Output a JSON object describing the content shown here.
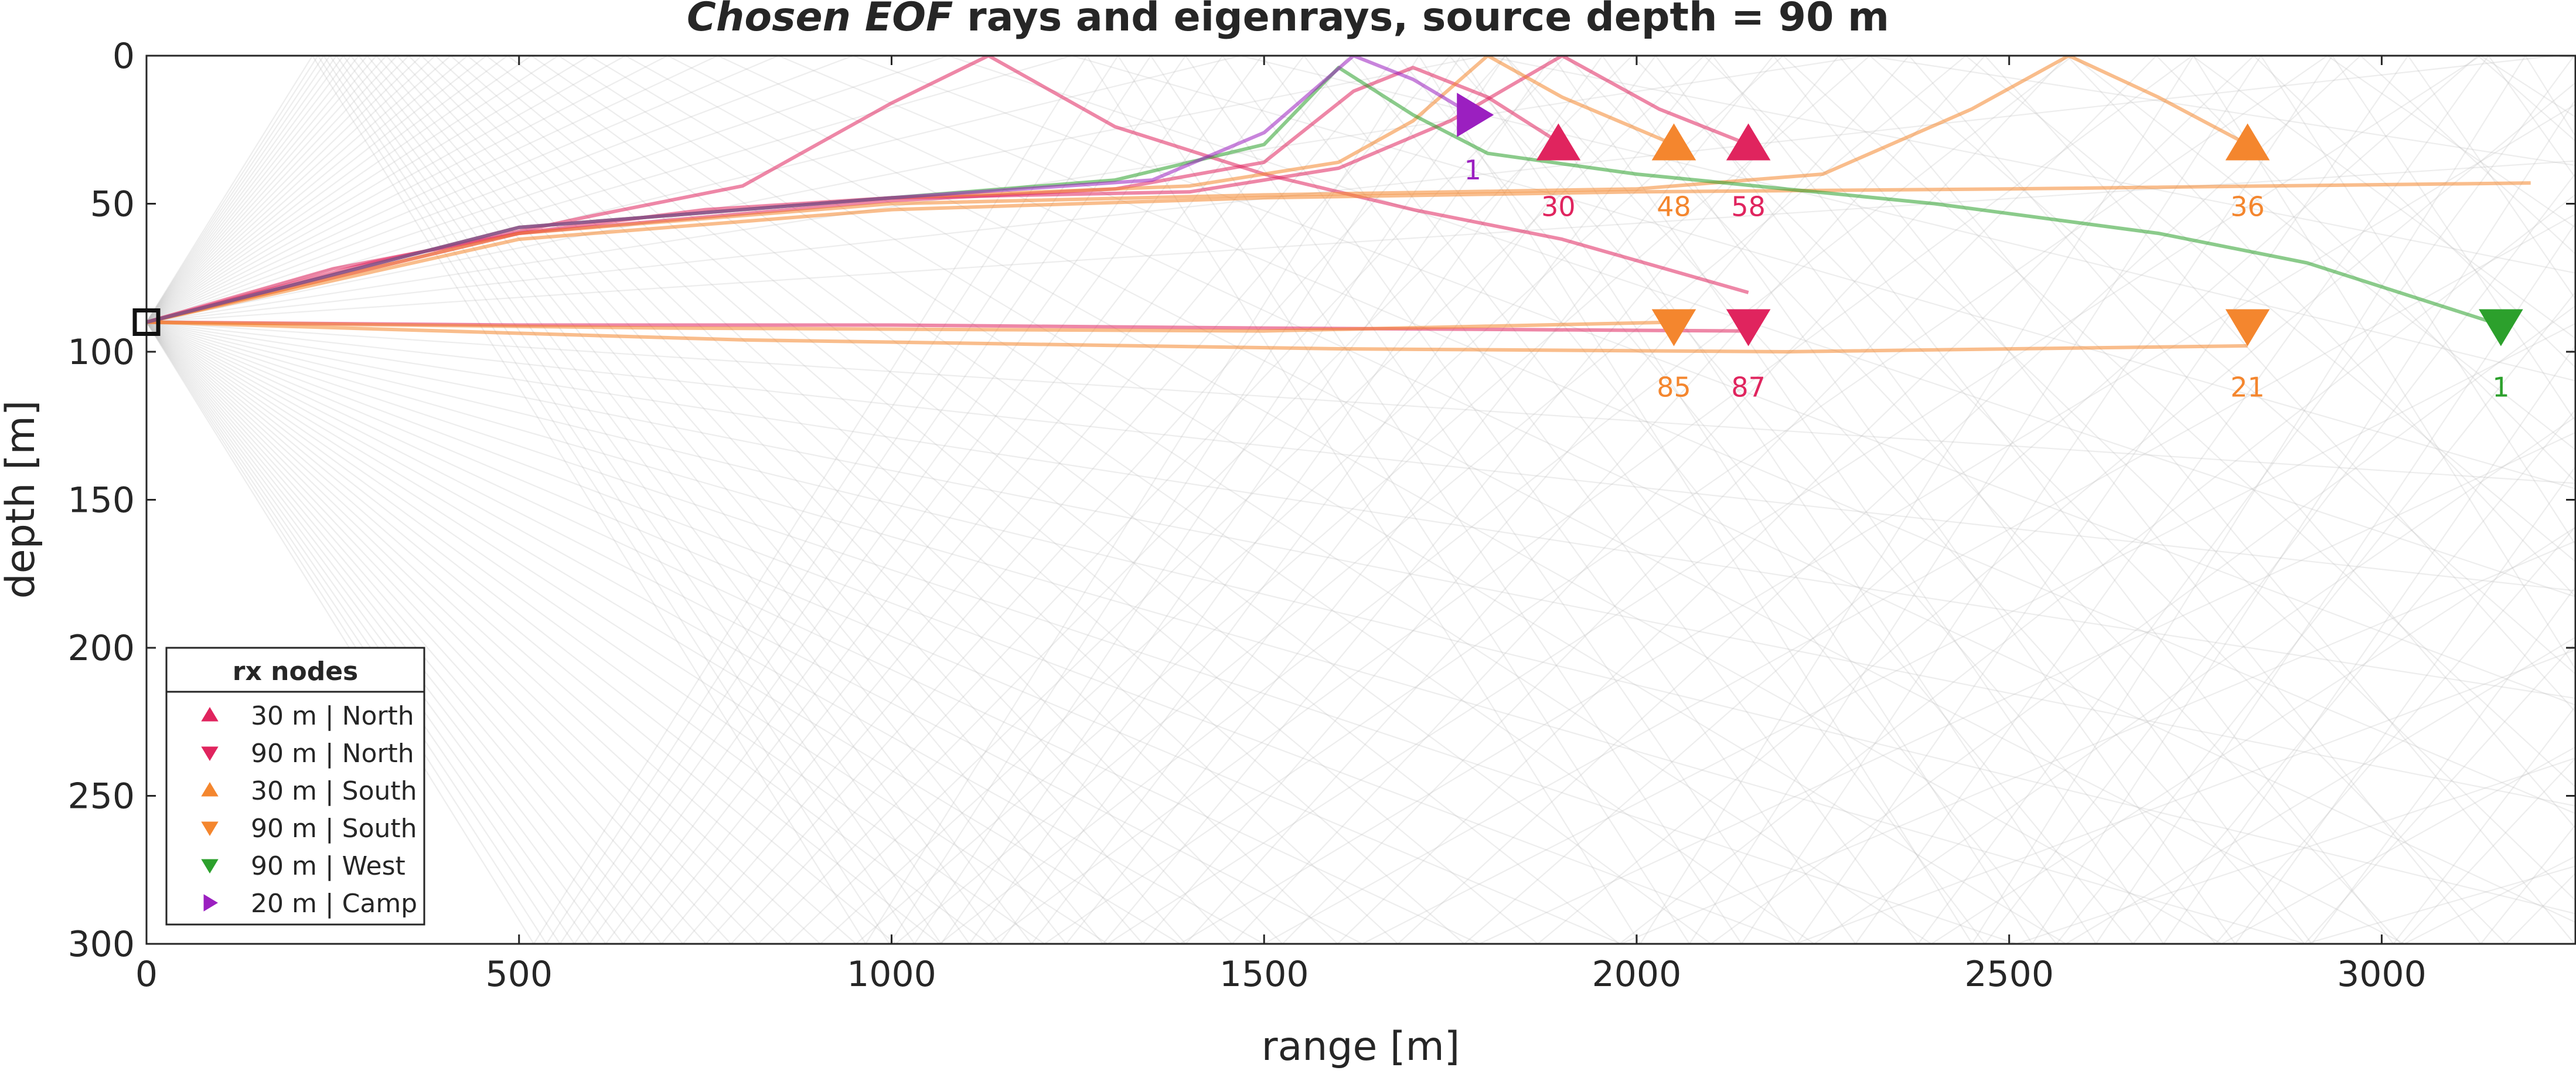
{
  "chart_data": {
    "type": "line",
    "title_italic": "Chosen EOF",
    "title_rest": " rays and eigenrays, source depth = 90 m",
    "xlabel": "range [m]",
    "ylabel": "depth [m]",
    "xlim": [
      0,
      3260
    ],
    "ylim": [
      0,
      300
    ],
    "y_reversed": true,
    "xticks": [
      0,
      500,
      1000,
      1500,
      2000,
      2500,
      3000
    ],
    "yticks": [
      0,
      50,
      100,
      150,
      200,
      250,
      300
    ],
    "grid": false,
    "source": {
      "x": 0,
      "y": 90,
      "marker": "square"
    },
    "colors": {
      "north": "#e0245e",
      "south": "#f4862e",
      "west": "#2ca02c",
      "camp": "#9b1fc0",
      "background_rays": "#bdbdbd"
    },
    "background_ray_fan": {
      "source_x": 0,
      "source_y": 90,
      "angle_range_deg": [
        -22,
        22
      ],
      "count": 70,
      "note_shown": false
    },
    "eigenrays": [
      {
        "group": "north",
        "points": [
          [
            0,
            90
          ],
          [
            250,
            72
          ],
          [
            500,
            60
          ],
          [
            750,
            52
          ],
          [
            1000,
            48
          ],
          [
            1200,
            47
          ],
          [
            1400,
            46
          ],
          [
            1600,
            38
          ],
          [
            1750,
            22
          ],
          [
            1900,
            0
          ],
          [
            2030,
            18
          ],
          [
            2150,
            30
          ]
        ]
      },
      {
        "group": "north",
        "points": [
          [
            0,
            90
          ],
          [
            300,
            70
          ],
          [
            600,
            54
          ],
          [
            800,
            44
          ],
          [
            900,
            30
          ],
          [
            1000,
            16
          ],
          [
            1130,
            0
          ],
          [
            1300,
            24
          ],
          [
            1500,
            40
          ],
          [
            1700,
            52
          ],
          [
            1900,
            62
          ],
          [
            2150,
            80
          ]
        ]
      },
      {
        "group": "north",
        "points": [
          [
            0,
            90
          ],
          [
            500,
            60
          ],
          [
            1000,
            49
          ],
          [
            1300,
            45
          ],
          [
            1500,
            36
          ],
          [
            1620,
            12
          ],
          [
            1700,
            4
          ],
          [
            1800,
            14
          ],
          [
            1900,
            30
          ]
        ]
      },
      {
        "group": "north",
        "points": [
          [
            0,
            90
          ],
          [
            500,
            91
          ],
          [
            1000,
            91
          ],
          [
            1500,
            92
          ],
          [
            2150,
            93
          ]
        ]
      },
      {
        "group": "south",
        "points": [
          [
            0,
            90
          ],
          [
            500,
            58
          ],
          [
            1000,
            48
          ],
          [
            1400,
            44
          ],
          [
            1600,
            36
          ],
          [
            1700,
            22
          ],
          [
            1800,
            0
          ],
          [
            1900,
            14
          ],
          [
            2050,
            30
          ]
        ]
      },
      {
        "group": "south",
        "points": [
          [
            0,
            90
          ],
          [
            500,
            60
          ],
          [
            1000,
            50
          ],
          [
            1500,
            47
          ],
          [
            2000,
            45
          ],
          [
            2250,
            40
          ],
          [
            2450,
            18
          ],
          [
            2580,
            0
          ],
          [
            2700,
            14
          ],
          [
            2820,
            30
          ]
        ]
      },
      {
        "group": "south",
        "points": [
          [
            0,
            90
          ],
          [
            700,
            92
          ],
          [
            1500,
            93
          ],
          [
            2050,
            90
          ]
        ]
      },
      {
        "group": "south",
        "points": [
          [
            0,
            90
          ],
          [
            800,
            96
          ],
          [
            1600,
            99
          ],
          [
            2200,
            100
          ],
          [
            2820,
            98
          ]
        ]
      },
      {
        "group": "south",
        "points": [
          [
            0,
            90
          ],
          [
            500,
            62
          ],
          [
            1000,
            52
          ],
          [
            1500,
            48
          ],
          [
            2000,
            46
          ],
          [
            2500,
            45
          ],
          [
            3200,
            43
          ]
        ]
      },
      {
        "group": "west",
        "points": [
          [
            0,
            90
          ],
          [
            500,
            58
          ],
          [
            1000,
            48
          ],
          [
            1300,
            42
          ],
          [
            1500,
            30
          ],
          [
            1600,
            4
          ],
          [
            1700,
            20
          ],
          [
            1800,
            33
          ],
          [
            2000,
            40
          ],
          [
            2400,
            50
          ],
          [
            2700,
            60
          ],
          [
            2900,
            70
          ],
          [
            3160,
            91
          ]
        ]
      },
      {
        "group": "camp",
        "points": [
          [
            0,
            90
          ],
          [
            500,
            58
          ],
          [
            1000,
            48
          ],
          [
            1350,
            42
          ],
          [
            1500,
            26
          ],
          [
            1620,
            0
          ],
          [
            1700,
            8
          ],
          [
            1780,
            20
          ]
        ]
      }
    ],
    "receivers": [
      {
        "label": "30",
        "x": 1895,
        "y": 30,
        "group": "north",
        "marker": "triangle-up"
      },
      {
        "label": "58",
        "x": 2150,
        "y": 30,
        "group": "north",
        "marker": "triangle-up"
      },
      {
        "label": "87",
        "x": 2150,
        "y": 91,
        "group": "north",
        "marker": "triangle-down"
      },
      {
        "label": "48",
        "x": 2050,
        "y": 30,
        "group": "south",
        "marker": "triangle-up"
      },
      {
        "label": "36",
        "x": 2820,
        "y": 30,
        "group": "south",
        "marker": "triangle-up"
      },
      {
        "label": "85",
        "x": 2050,
        "y": 91,
        "group": "south",
        "marker": "triangle-down"
      },
      {
        "label": "21",
        "x": 2820,
        "y": 91,
        "group": "south",
        "marker": "triangle-down"
      },
      {
        "label": "1",
        "x": 3160,
        "y": 91,
        "group": "west",
        "marker": "triangle-down"
      },
      {
        "label": "1",
        "x": 1780,
        "y": 20,
        "group": "camp",
        "marker": "triangle-right"
      }
    ],
    "legend": {
      "title": "rx nodes",
      "placement": "bottom-left",
      "entries": [
        {
          "label": "30 m | North",
          "group": "north",
          "marker": "triangle-up"
        },
        {
          "label": "90 m | North",
          "group": "north",
          "marker": "triangle-down"
        },
        {
          "label": "30 m | South",
          "group": "south",
          "marker": "triangle-up"
        },
        {
          "label": "90 m | South",
          "group": "south",
          "marker": "triangle-down"
        },
        {
          "label": "90 m | West",
          "group": "west",
          "marker": "triangle-down"
        },
        {
          "label": "20 m | Camp",
          "group": "camp",
          "marker": "triangle-right"
        }
      ]
    }
  }
}
